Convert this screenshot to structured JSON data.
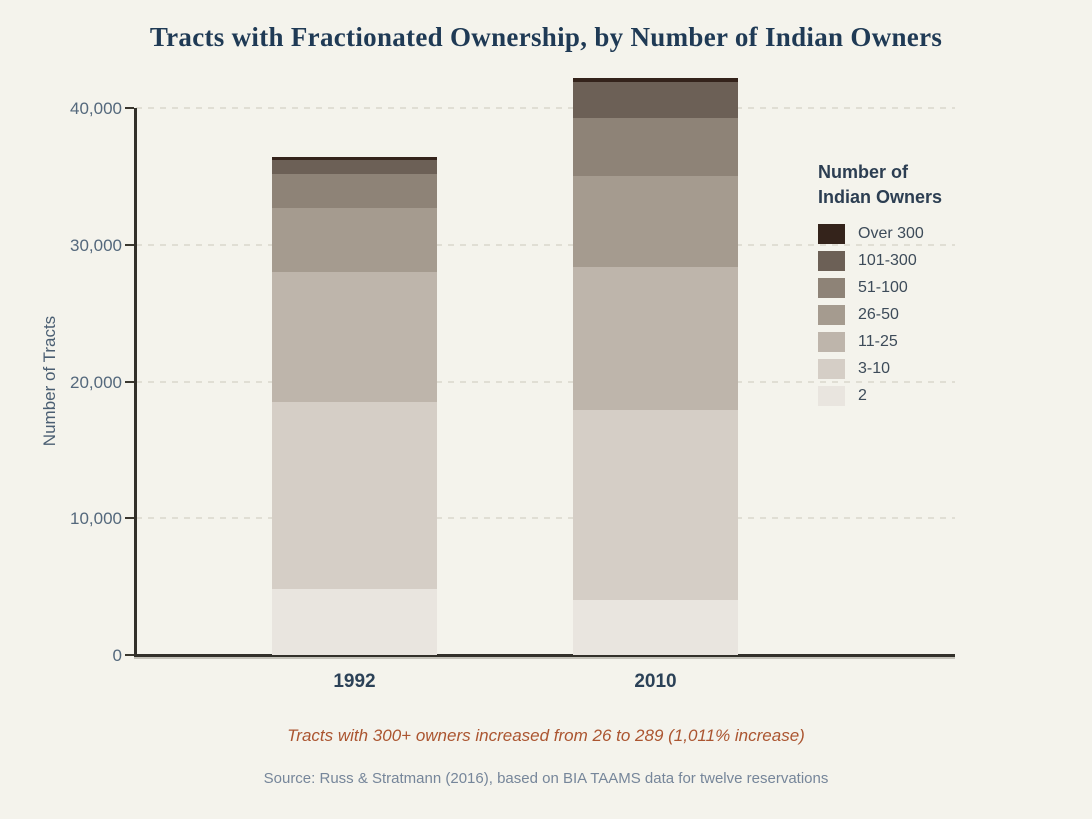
{
  "page": {
    "title": "Tracts with Fractionated Ownership, by Number of Indian Owners",
    "annotation": "Tracts with 300+ owners increased from 26 to 289 (1,011% increase)",
    "source": "Source: Russ & Stratmann (2016), based on BIA TAAMS data for twelve reservations"
  },
  "legend": {
    "title_line1": "Number of",
    "title_line2": "Indian Owners"
  },
  "colors": {
    "background": "#f4f3ec",
    "title_text": "#1f3a55",
    "axis_line": "#32302a",
    "gridline": "#e0ded4",
    "tick_text": "#54687c",
    "annotation_text": "#ab5530",
    "source_text": "#76869a"
  },
  "chart_data": {
    "type": "bar",
    "stacked": true,
    "title": "Tracts with Fractionated Ownership, by Number of Indian Owners",
    "categories": [
      "1992",
      "2010"
    ],
    "xlabel": "",
    "ylabel": "Number of Tracts",
    "ylim": [
      0,
      40000
    ],
    "yticks": [
      0,
      10000,
      20000,
      30000,
      40000
    ],
    "ytick_labels": [
      "0",
      "10,000",
      "20,000",
      "30,000",
      "40,000"
    ],
    "grid": "horizontal-dashed",
    "legend_position": "right",
    "legend_order": "top-segment-first",
    "series": [
      {
        "name": "2",
        "color": "#e9e5df",
        "values": [
          4800,
          4000
        ]
      },
      {
        "name": "3-10",
        "color": "#d5cec6",
        "values": [
          13700,
          13900
        ]
      },
      {
        "name": "11-25",
        "color": "#beb5ab",
        "values": [
          9500,
          10500
        ]
      },
      {
        "name": "26-50",
        "color": "#a59b8f",
        "values": [
          4700,
          6600
        ]
      },
      {
        "name": "51-100",
        "color": "#8e8377",
        "values": [
          2500,
          4300
        ]
      },
      {
        "name": "101-300",
        "color": "#6c6056",
        "values": [
          1000,
          2600
        ]
      },
      {
        "name": "Over 300",
        "color": "#34231b",
        "values": [
          26,
          289
        ]
      }
    ],
    "notes": "Over-300 exact values given in annotation: 26 (1992), 289 (2010). Other values read from axis gridlines."
  }
}
